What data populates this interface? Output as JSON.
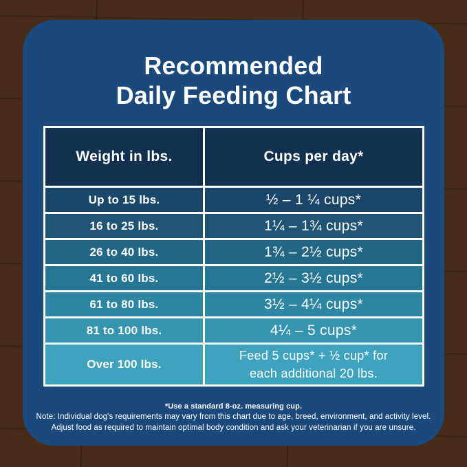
{
  "colors": {
    "card_bg": "#1a4a7d",
    "header_bg": "#12304f",
    "border_white": "#ffffff",
    "wood_brown": "#472c19",
    "row_gradient": [
      "#1a466a",
      "#1e5577",
      "#216687",
      "#267795",
      "#2d86a3",
      "#3595b1",
      "#3fa2bf"
    ]
  },
  "title": {
    "line1": "Recommended",
    "line2": "Daily Feeding Chart"
  },
  "table": {
    "headers": {
      "weight": "Weight in lbs.",
      "cups": "Cups per day*"
    },
    "rows": [
      {
        "weight": "Up to 15 lbs.",
        "cups": "½ – 1 ¼ cups*",
        "bg": "#1a466a"
      },
      {
        "weight": "16 to 25 lbs.",
        "cups": "1¼ – 1¾  cups*",
        "bg": "#1e5577"
      },
      {
        "weight": "26 to 40 lbs.",
        "cups": "1¾ – 2½ cups*",
        "bg": "#216687"
      },
      {
        "weight": "41 to 60 lbs.",
        "cups": "2½ – 3½ cups*",
        "bg": "#267795"
      },
      {
        "weight": "61 to 80 lbs.",
        "cups": "3½ – 4¼ cups*",
        "bg": "#2d86a3"
      },
      {
        "weight": "81 to 100 lbs.",
        "cups": "4¼ – 5 cups*",
        "bg": "#3595b1"
      },
      {
        "weight": "Over 100 lbs.",
        "cups_line1": "Feed 5 cups*  + ½ cup* for",
        "cups_line2": "each  additional 20 lbs.",
        "bg": "#3fa2bf"
      }
    ]
  },
  "notes": {
    "line1": "*Use a standard 8-oz. measuring cup.",
    "line2": "Note: Individual dog's requirements may vary from this chart due to age, breed, environment, and activity level.",
    "line3": "Adjust food as required to maintain optimal body condition and ask your veterinarian if you are unsure."
  },
  "chart_data": {
    "type": "table",
    "title": "Recommended Daily Feeding Chart",
    "columns": [
      "Weight in lbs.",
      "Cups per day*"
    ],
    "rows": [
      [
        "Up to 15 lbs.",
        "½ – 1 ¼ cups*"
      ],
      [
        "16 to 25 lbs.",
        "1¼ – 1¾ cups*"
      ],
      [
        "26 to 40 lbs.",
        "1¾ – 2½ cups*"
      ],
      [
        "41 to 60 lbs.",
        "2½ – 3½ cups*"
      ],
      [
        "61 to 80 lbs.",
        "3½ – 4¼ cups*"
      ],
      [
        "81 to 100 lbs.",
        "4¼ – 5 cups*"
      ],
      [
        "Over 100 lbs.",
        "Feed 5 cups* + ½ cup* for each additional 20 lbs."
      ]
    ],
    "footnotes": [
      "*Use a standard 8-oz. measuring cup.",
      "Note: Individual dog's requirements may vary from this chart due to age, breed, environment, and activity level.",
      "Adjust food as required to maintain optimal body condition and ask your veterinarian if you are unsure."
    ]
  }
}
